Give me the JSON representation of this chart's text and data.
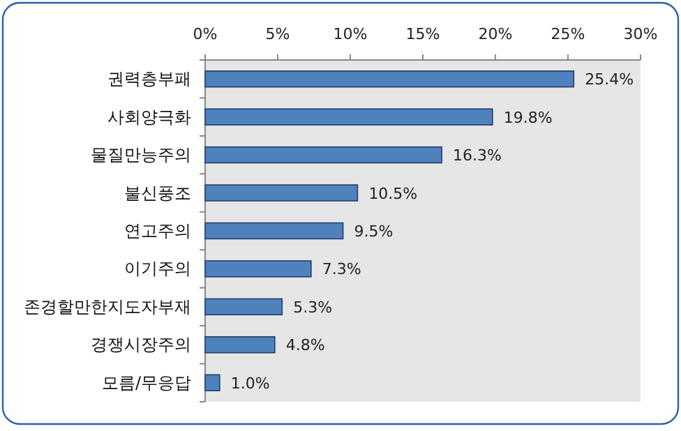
{
  "chart_data": {
    "type": "bar",
    "orientation": "horizontal",
    "categories": [
      "권력층부패",
      "사회양극화",
      "물질만능주의",
      "불신풍조",
      "연고주의",
      "이기주의",
      "존경할만한지도자부재",
      "경쟁시장주의",
      "모름/무응답"
    ],
    "values": [
      25.4,
      19.8,
      16.3,
      10.5,
      9.5,
      7.3,
      5.3,
      4.8,
      1.0
    ],
    "value_labels": [
      "25.4%",
      "19.8%",
      "16.3%",
      "10.5%",
      "9.5%",
      "7.3%",
      "5.3%",
      "4.8%",
      "1.0%"
    ],
    "color": "#4f81bd",
    "xlim": [
      0,
      30
    ],
    "xticks": [
      {
        "value": 0,
        "label": "0%"
      },
      {
        "value": 5,
        "label": "5%"
      },
      {
        "value": 10,
        "label": "10%"
      },
      {
        "value": 15,
        "label": "15%"
      },
      {
        "value": 20,
        "label": "20%"
      },
      {
        "value": 25,
        "label": "25%"
      },
      {
        "value": 30,
        "label": "30%"
      }
    ],
    "grid": false
  }
}
